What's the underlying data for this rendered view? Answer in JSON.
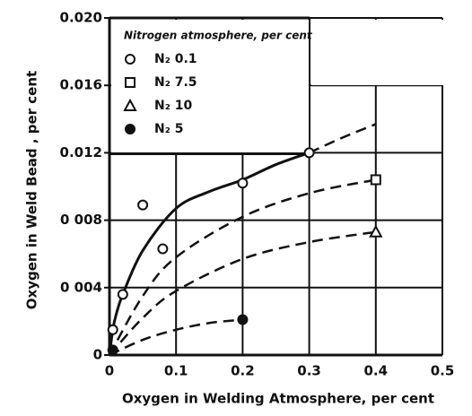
{
  "chart_data": {
    "type": "scatter",
    "xlabel": "Oxygen in Welding Atmosphere, per cent",
    "ylabel": "Oxygen in Weld Bead , per cent",
    "legend_title": "Nitrogen atmosphere, per cent",
    "xlim": [
      0,
      0.5
    ],
    "ylim": [
      0,
      0.02
    ],
    "xticks": [
      0,
      0.1,
      0.2,
      0.3,
      0.4,
      0.5
    ],
    "yticks": [
      0,
      {
        "value": 0.004,
        "label": "0 004"
      },
      {
        "value": 0.008,
        "label": "0 008"
      },
      {
        "value": 0.012,
        "label": "0.012"
      },
      {
        "value": 0.016,
        "label": "0.016"
      },
      {
        "value": 0.02,
        "label": "0.020"
      }
    ],
    "grid": true,
    "color": "#111111",
    "series": [
      {
        "name": "N₂ 0.1",
        "marker": "circle",
        "x": [
          0.005,
          0.02,
          0.05,
          0.08,
          0.2,
          0.3
        ],
        "values": [
          0.0015,
          0.0036,
          0.0089,
          0.0063,
          0.0102,
          0.012
        ]
      },
      {
        "name": "N₂ 7.5",
        "marker": "square",
        "x": [
          0.4
        ],
        "values": [
          0.0104
        ]
      },
      {
        "name": "N₂ 10",
        "marker": "triangle",
        "x": [
          0.4
        ],
        "values": [
          0.0073
        ]
      },
      {
        "name": "N₂ 5",
        "marker": "filled-circle",
        "x": [
          0.005,
          0.2
        ],
        "values": [
          0.0003,
          0.0021
        ]
      }
    ],
    "curves": [
      {
        "style": "solid",
        "x": [
          0,
          0.005,
          0.01,
          0.02,
          0.05,
          0.1,
          0.15,
          0.2,
          0.25,
          0.3
        ],
        "values": [
          0,
          0.0015,
          0.0024,
          0.0036,
          0.0062,
          0.0087,
          0.0097,
          0.0104,
          0.0113,
          0.012
        ]
      },
      {
        "style": "dashed",
        "x": [
          0.3,
          0.35,
          0.4
        ],
        "values": [
          0.012,
          0.0129,
          0.0137
        ]
      },
      {
        "style": "dashed",
        "x": [
          0,
          0.05,
          0.1,
          0.2,
          0.3,
          0.4
        ],
        "values": [
          0,
          0.0035,
          0.0058,
          0.0082,
          0.0096,
          0.0104
        ]
      },
      {
        "style": "dashed",
        "x": [
          0,
          0.05,
          0.1,
          0.2,
          0.3,
          0.4
        ],
        "values": [
          0,
          0.0022,
          0.0038,
          0.0057,
          0.0067,
          0.0073
        ]
      },
      {
        "style": "dashed",
        "x": [
          0,
          0.05,
          0.1,
          0.15,
          0.2
        ],
        "values": [
          0,
          0.0009,
          0.0015,
          0.0019,
          0.0021
        ]
      }
    ]
  }
}
